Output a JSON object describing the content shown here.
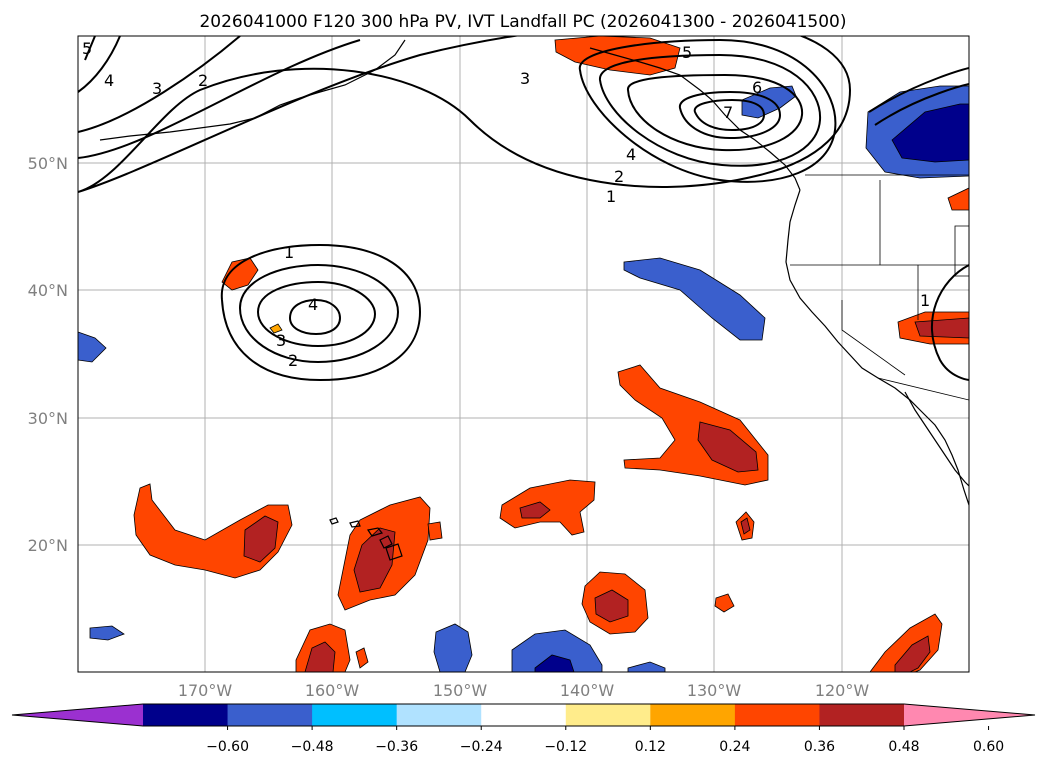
{
  "title": "2026041000 F120 300 hPa PV, IVT Landfall PC (2026041300 - 2026041500)",
  "lat_labels": [
    "50°N",
    "40°N",
    "30°N",
    "20°N"
  ],
  "lon_labels": [
    "170°W",
    "160°W",
    "150°W",
    "140°W",
    "130°W",
    "120°W"
  ],
  "colorbar": {
    "ticks": [
      "−0.60",
      "−0.48",
      "−0.36",
      "−0.24",
      "−0.12",
      "0.12",
      "0.24",
      "0.36",
      "0.48",
      "0.60"
    ],
    "colors": [
      "#9b30d0",
      "#00008b",
      "#3a5fcd",
      "#00bfff",
      "#b0e2ff",
      "#ffffff",
      "#ffec8b",
      "#ffa500",
      "#ff4500",
      "#b22222",
      "#ff88b0"
    ]
  },
  "contour_labels": {
    "l5a": "5",
    "l4a": "4",
    "l3a": "3",
    "l2a": "2",
    "l3b": "3",
    "l5b": "5",
    "l6": "6",
    "l7": "7",
    "l4b": "4",
    "l2b": "2",
    "l1a": "1",
    "l1b": "1",
    "l4c": "4",
    "l3c": "3",
    "l2c": "2",
    "l1c": "1"
  }
}
